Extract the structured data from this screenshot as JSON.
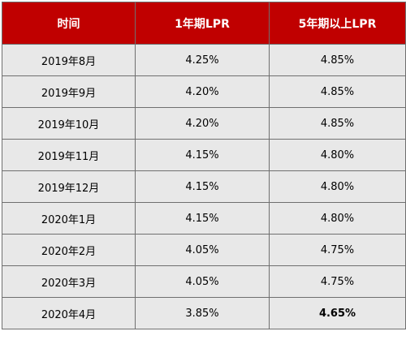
{
  "table": {
    "headers": [
      "时间",
      "1年期LPR",
      "5年期以上LPR"
    ],
    "rows": [
      {
        "date": "2019年8月",
        "lpr1": "4.25%",
        "lpr5": "4.85%"
      },
      {
        "date": "2019年9月",
        "lpr1": "4.20%",
        "lpr5": "4.85%"
      },
      {
        "date": "2019年10月",
        "lpr1": "4.20%",
        "lpr5": "4.85%"
      },
      {
        "date": "2019年11月",
        "lpr1": "4.15%",
        "lpr5": "4.80%"
      },
      {
        "date": "2019年12月",
        "lpr1": "4.15%",
        "lpr5": "4.80%"
      },
      {
        "date": "2020年1月",
        "lpr1": "4.15%",
        "lpr5": "4.80%"
      },
      {
        "date": "2020年2月",
        "lpr1": "4.05%",
        "lpr5": "4.75%"
      },
      {
        "date": "2020年3月",
        "lpr1": "4.05%",
        "lpr5": "4.75%"
      },
      {
        "date": "2020年4月",
        "lpr1": "3.85%",
        "lpr5": "4.65%",
        "lpr5_highlight": true
      }
    ],
    "colors": {
      "header_bg": "#c00000",
      "header_text": "#ffffff",
      "row_bg": "#e8e8e8",
      "highlight_text": "#c00000"
    }
  }
}
